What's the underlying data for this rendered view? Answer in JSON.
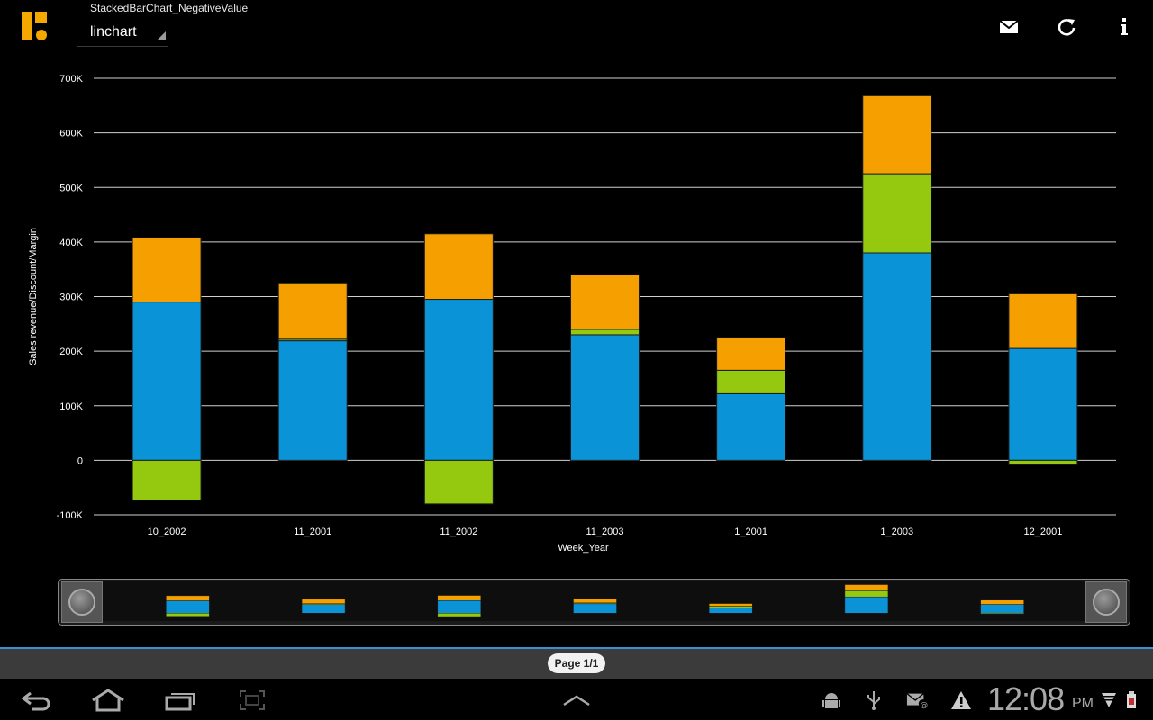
{
  "app": {
    "chart_name": "StackedBarChart_NegativeValue",
    "view_selector": "linchart",
    "actions": [
      "mail-icon",
      "refresh-icon",
      "info-icon"
    ]
  },
  "colors": {
    "series_blue": "#0a93d6",
    "series_green": "#94c90f",
    "series_orange": "#f5a000",
    "grid": "#cfcfcf"
  },
  "chart_data": {
    "type": "bar",
    "stacked": true,
    "categories": [
      "10_2002",
      "11_2001",
      "11_2002",
      "11_2003",
      "1_2001",
      "1_2003",
      "12_2001"
    ],
    "series": [
      {
        "color": "#0a93d6",
        "values": [
          290000,
          219000,
          295000,
          230000,
          122000,
          380000,
          205000
        ]
      },
      {
        "color": "#94c90f",
        "values": [
          -73000,
          3000,
          -80000,
          10000,
          43000,
          145000,
          -8000
        ]
      },
      {
        "color": "#f5a000",
        "values": [
          118000,
          103000,
          120000,
          100000,
          60000,
          143000,
          100000
        ]
      }
    ],
    "xlabel": "Week_Year",
    "ylabel": "Sales revenue/Discount/Margin",
    "ylim": [
      -100000,
      700000
    ],
    "yticks": [
      {
        "value": 700000,
        "label": "700K"
      },
      {
        "value": 600000,
        "label": "600K"
      },
      {
        "value": 500000,
        "label": "500K"
      },
      {
        "value": 400000,
        "label": "400K"
      },
      {
        "value": 300000,
        "label": "300K"
      },
      {
        "value": 200000,
        "label": "200K"
      },
      {
        "value": 100000,
        "label": "100K"
      },
      {
        "value": 0,
        "label": "0"
      },
      {
        "value": -100000,
        "label": "-100K"
      }
    ],
    "grid": true
  },
  "pager": {
    "label": "Page 1/1"
  },
  "system_bar": {
    "nav": [
      "back-icon",
      "home-icon",
      "recent-apps-icon",
      "screenshot-icon",
      "up-chevron-icon"
    ],
    "status": [
      "android-debug-icon",
      "usb-icon",
      "email-notification-icon",
      "warning-icon"
    ],
    "time": "12:08",
    "ampm": "PM"
  }
}
